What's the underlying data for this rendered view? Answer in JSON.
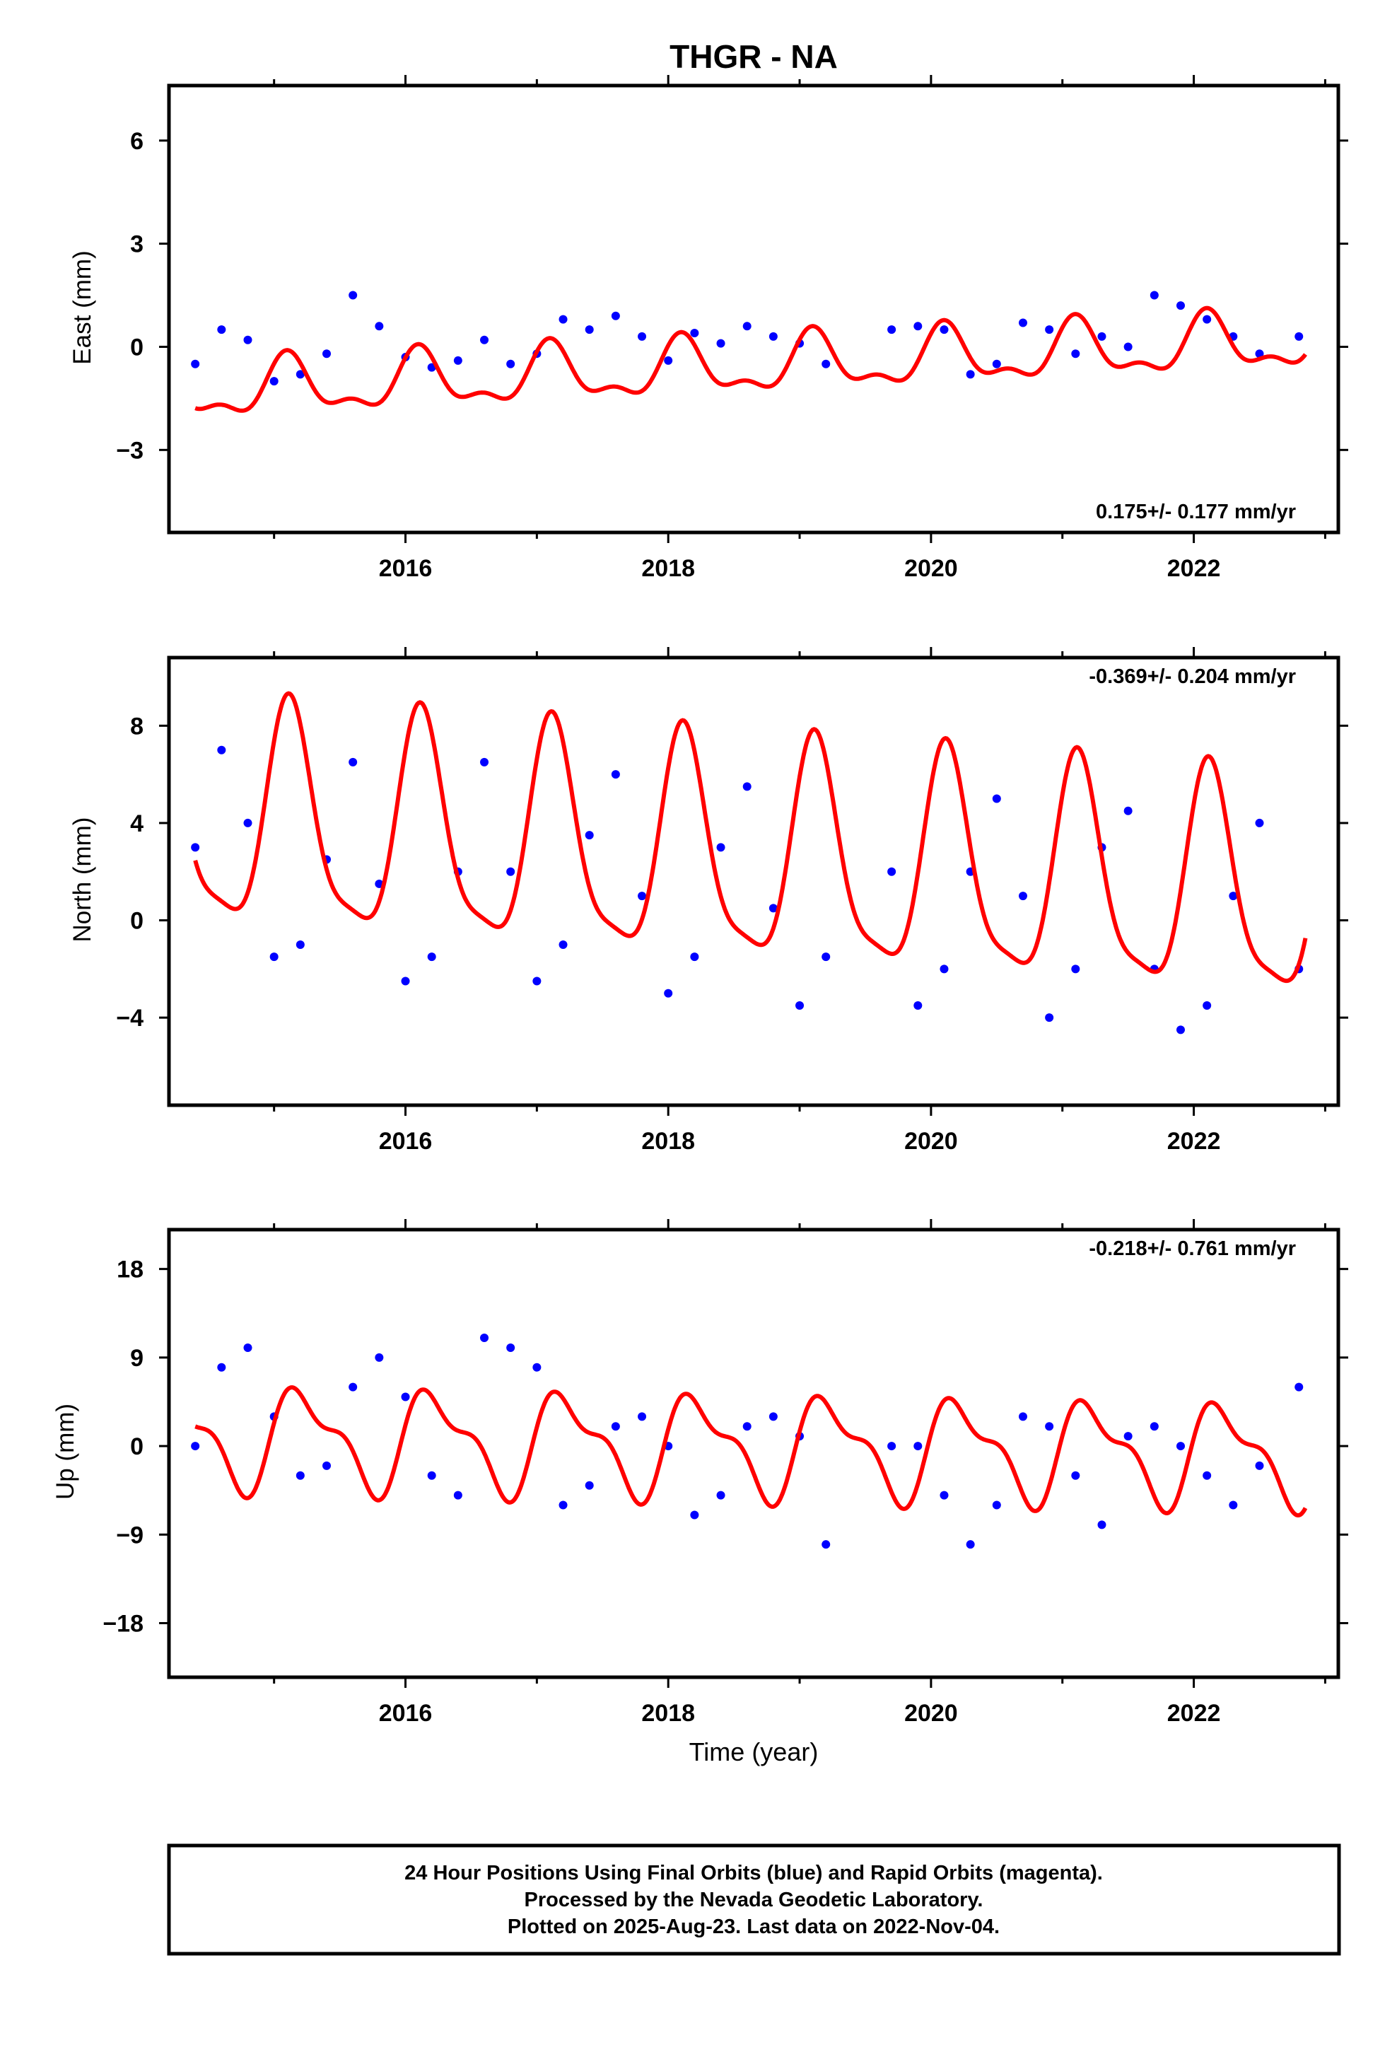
{
  "chart_data": {
    "type": "scatter",
    "title": "THGR - NA",
    "xlabel": "Time (year)",
    "x_range": [
      2014.2,
      2023.1
    ],
    "x_ticks": [
      "2016",
      "2018",
      "2020",
      "2022"
    ],
    "panels": [
      {
        "name": "east",
        "ylabel": "East (mm)",
        "ylim": [
          -5.4,
          7.6
        ],
        "y_ticks": [
          "6",
          "3",
          "0",
          "-3"
        ],
        "rate_text": "0.175+/- 0.177 mm/yr",
        "rate_position": "bottom-right",
        "series": [
          {
            "kind": "points",
            "color": "#0000ff",
            "x": [
              2014.4,
              2014.6,
              2014.8,
              2015.0,
              2015.2,
              2015.4,
              2015.6,
              2015.8,
              2016.0,
              2016.2,
              2016.4,
              2016.6,
              2016.8,
              2017.0,
              2017.2,
              2017.4,
              2017.6,
              2017.8,
              2018.0,
              2018.2,
              2018.4,
              2018.6,
              2018.8,
              2019.0,
              2019.2,
              2019.7,
              2019.9,
              2020.1,
              2020.3,
              2020.5,
              2020.7,
              2020.9,
              2021.1,
              2021.3,
              2021.5,
              2021.7,
              2021.9,
              2022.1,
              2022.3,
              2022.5,
              2022.8
            ],
            "y": [
              -0.5,
              0.5,
              0.2,
              -1.0,
              -0.8,
              -0.2,
              1.5,
              0.6,
              -0.3,
              -0.6,
              -0.4,
              0.2,
              -0.5,
              -0.2,
              0.8,
              0.5,
              0.9,
              0.3,
              -0.4,
              0.4,
              0.1,
              0.6,
              0.3,
              0.1,
              -0.5,
              0.5,
              0.6,
              0.5,
              -0.8,
              -0.5,
              0.7,
              0.5,
              -0.2,
              0.3,
              0.0,
              1.5,
              1.2,
              0.8,
              0.3,
              -0.2,
              0.3
            ]
          },
          {
            "kind": "line",
            "color": "#ff0000",
            "trend": 0.175,
            "offset": -0.6,
            "annual_amp": 0.75,
            "annual_phase": 0.9,
            "semi_amp": 0.35,
            "semi_phase": 0.4
          }
        ]
      },
      {
        "name": "north",
        "ylabel": "North (mm)",
        "ylim": [
          -7.6,
          10.8
        ],
        "y_ticks": [
          "8",
          "4",
          "0",
          "-4"
        ],
        "rate_text": "-0.369+/- 0.204 mm/yr",
        "rate_position": "top-right",
        "series": [
          {
            "kind": "points",
            "color": "#0000ff",
            "x": [
              2014.4,
              2014.6,
              2014.8,
              2015.0,
              2015.2,
              2015.4,
              2015.6,
              2015.8,
              2016.0,
              2016.2,
              2016.4,
              2016.6,
              2016.8,
              2017.0,
              2017.2,
              2017.4,
              2017.6,
              2017.8,
              2018.0,
              2018.2,
              2018.4,
              2018.6,
              2018.8,
              2019.0,
              2019.2,
              2019.7,
              2019.9,
              2020.1,
              2020.3,
              2020.5,
              2020.7,
              2020.9,
              2021.1,
              2021.3,
              2021.5,
              2021.7,
              2021.9,
              2022.1,
              2022.3,
              2022.5,
              2022.8
            ],
            "y": [
              3.0,
              7.0,
              4.0,
              -1.5,
              -1.0,
              2.5,
              6.5,
              1.5,
              -2.5,
              -1.5,
              2.0,
              6.5,
              2.0,
              -2.5,
              -1.0,
              3.5,
              6.0,
              1.0,
              -3.0,
              -1.5,
              3.0,
              5.5,
              0.5,
              -3.5,
              -1.5,
              2.0,
              -3.5,
              -2.0,
              2.0,
              5.0,
              1.0,
              -4.0,
              -2.0,
              3.0,
              4.5,
              -2.0,
              -4.5,
              -3.5,
              1.0,
              4.0,
              -2.0
            ]
          },
          {
            "kind": "line",
            "color": "#ff0000",
            "trend": -0.369,
            "offset": 2.6,
            "annual_amp": 4.4,
            "annual_phase": 0.8,
            "semi_amp": 1.1,
            "semi_phase": 0.3
          }
        ]
      },
      {
        "name": "up",
        "ylabel": "Up (mm)",
        "ylim": [
          -23.5,
          22.0
        ],
        "y_ticks": [
          "18",
          "9",
          "0",
          "-9",
          "-18"
        ],
        "rate_text": "-0.218+/- 0.761 mm/yr",
        "rate_position": "top-right",
        "series": [
          {
            "kind": "points",
            "color": "#0000ff",
            "x": [
              2014.4,
              2014.6,
              2014.8,
              2015.0,
              2015.2,
              2015.4,
              2015.6,
              2015.8,
              2016.0,
              2016.2,
              2016.4,
              2016.6,
              2016.8,
              2017.0,
              2017.2,
              2017.4,
              2017.6,
              2017.8,
              2018.0,
              2018.2,
              2018.4,
              2018.6,
              2018.8,
              2019.0,
              2019.2,
              2019.7,
              2019.9,
              2020.1,
              2020.3,
              2020.5,
              2020.7,
              2020.9,
              2021.1,
              2021.3,
              2021.5,
              2021.7,
              2021.9,
              2022.1,
              2022.3,
              2022.5,
              2022.8
            ],
            "y": [
              0.0,
              8.0,
              10.0,
              3.0,
              -3.0,
              -2.0,
              6.0,
              9.0,
              5.0,
              -3.0,
              -5.0,
              11.0,
              10.0,
              8.0,
              -6.0,
              -4.0,
              2.0,
              3.0,
              0.0,
              -7.0,
              -5.0,
              2.0,
              3.0,
              1.0,
              -10.0,
              0.0,
              0.0,
              -5.0,
              -10.0,
              -6.0,
              3.0,
              2.0,
              -3.0,
              -8.0,
              1.0,
              2.0,
              0.0,
              -3.0,
              -6.0,
              -2.0,
              6.0
            ]
          },
          {
            "kind": "line",
            "color": "#ff0000",
            "trend": -0.218,
            "offset": 0.0,
            "annual_amp": 4.6,
            "annual_phase": 0.1,
            "semi_amp": 2.0,
            "semi_phase": 0.6
          }
        ]
      }
    ]
  },
  "footer": {
    "line1": "24 Hour Positions Using Final Orbits (blue) and Rapid Orbits (magenta).",
    "line2": "Processed by the Nevada Geodetic Laboratory.",
    "line3": "Plotted on 2025-Aug-23. Last data on 2022-Nov-04."
  }
}
